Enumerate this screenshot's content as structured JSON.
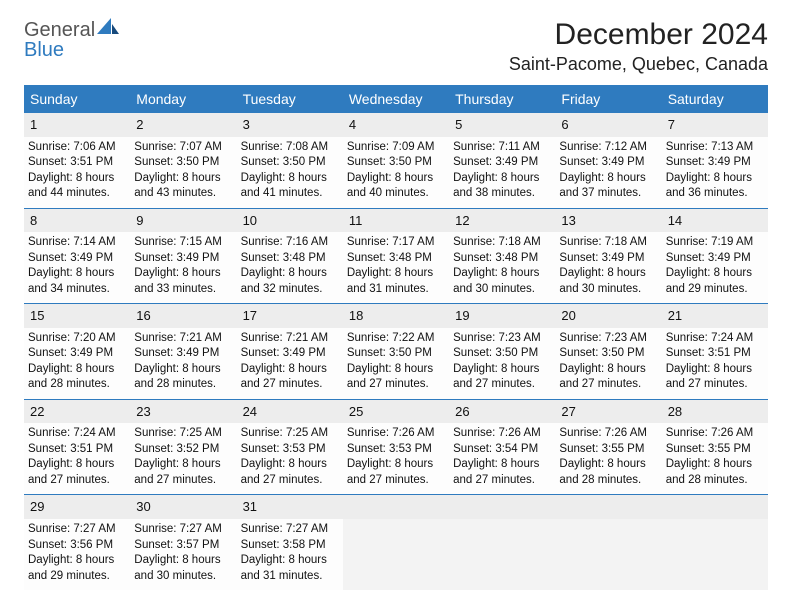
{
  "brand": {
    "word1": "General",
    "word2": "Blue",
    "primary_color": "#2f7bbf",
    "secondary_color": "#555555"
  },
  "title": "December 2024",
  "location": "Saint-Pacome, Quebec, Canada",
  "columns": [
    "Sunday",
    "Monday",
    "Tuesday",
    "Wednesday",
    "Thursday",
    "Friday",
    "Saturday"
  ],
  "style": {
    "header_bg": "#2f7bbf",
    "header_text": "#ffffff",
    "rule_color": "#2f7bbf",
    "daynum_bg": "#ededed",
    "cell_fontsize": 11.5,
    "title_fontsize": 30,
    "location_fontsize": 18
  },
  "days": [
    {
      "n": 1,
      "sunrise": "7:06 AM",
      "sunset": "3:51 PM",
      "daylight": "8 hours and 44 minutes."
    },
    {
      "n": 2,
      "sunrise": "7:07 AM",
      "sunset": "3:50 PM",
      "daylight": "8 hours and 43 minutes."
    },
    {
      "n": 3,
      "sunrise": "7:08 AM",
      "sunset": "3:50 PM",
      "daylight": "8 hours and 41 minutes."
    },
    {
      "n": 4,
      "sunrise": "7:09 AM",
      "sunset": "3:50 PM",
      "daylight": "8 hours and 40 minutes."
    },
    {
      "n": 5,
      "sunrise": "7:11 AM",
      "sunset": "3:49 PM",
      "daylight": "8 hours and 38 minutes."
    },
    {
      "n": 6,
      "sunrise": "7:12 AM",
      "sunset": "3:49 PM",
      "daylight": "8 hours and 37 minutes."
    },
    {
      "n": 7,
      "sunrise": "7:13 AM",
      "sunset": "3:49 PM",
      "daylight": "8 hours and 36 minutes."
    },
    {
      "n": 8,
      "sunrise": "7:14 AM",
      "sunset": "3:49 PM",
      "daylight": "8 hours and 34 minutes."
    },
    {
      "n": 9,
      "sunrise": "7:15 AM",
      "sunset": "3:49 PM",
      "daylight": "8 hours and 33 minutes."
    },
    {
      "n": 10,
      "sunrise": "7:16 AM",
      "sunset": "3:48 PM",
      "daylight": "8 hours and 32 minutes."
    },
    {
      "n": 11,
      "sunrise": "7:17 AM",
      "sunset": "3:48 PM",
      "daylight": "8 hours and 31 minutes."
    },
    {
      "n": 12,
      "sunrise": "7:18 AM",
      "sunset": "3:48 PM",
      "daylight": "8 hours and 30 minutes."
    },
    {
      "n": 13,
      "sunrise": "7:18 AM",
      "sunset": "3:49 PM",
      "daylight": "8 hours and 30 minutes."
    },
    {
      "n": 14,
      "sunrise": "7:19 AM",
      "sunset": "3:49 PM",
      "daylight": "8 hours and 29 minutes."
    },
    {
      "n": 15,
      "sunrise": "7:20 AM",
      "sunset": "3:49 PM",
      "daylight": "8 hours and 28 minutes."
    },
    {
      "n": 16,
      "sunrise": "7:21 AM",
      "sunset": "3:49 PM",
      "daylight": "8 hours and 28 minutes."
    },
    {
      "n": 17,
      "sunrise": "7:21 AM",
      "sunset": "3:49 PM",
      "daylight": "8 hours and 27 minutes."
    },
    {
      "n": 18,
      "sunrise": "7:22 AM",
      "sunset": "3:50 PM",
      "daylight": "8 hours and 27 minutes."
    },
    {
      "n": 19,
      "sunrise": "7:23 AM",
      "sunset": "3:50 PM",
      "daylight": "8 hours and 27 minutes."
    },
    {
      "n": 20,
      "sunrise": "7:23 AM",
      "sunset": "3:50 PM",
      "daylight": "8 hours and 27 minutes."
    },
    {
      "n": 21,
      "sunrise": "7:24 AM",
      "sunset": "3:51 PM",
      "daylight": "8 hours and 27 minutes."
    },
    {
      "n": 22,
      "sunrise": "7:24 AM",
      "sunset": "3:51 PM",
      "daylight": "8 hours and 27 minutes."
    },
    {
      "n": 23,
      "sunrise": "7:25 AM",
      "sunset": "3:52 PM",
      "daylight": "8 hours and 27 minutes."
    },
    {
      "n": 24,
      "sunrise": "7:25 AM",
      "sunset": "3:53 PM",
      "daylight": "8 hours and 27 minutes."
    },
    {
      "n": 25,
      "sunrise": "7:26 AM",
      "sunset": "3:53 PM",
      "daylight": "8 hours and 27 minutes."
    },
    {
      "n": 26,
      "sunrise": "7:26 AM",
      "sunset": "3:54 PM",
      "daylight": "8 hours and 27 minutes."
    },
    {
      "n": 27,
      "sunrise": "7:26 AM",
      "sunset": "3:55 PM",
      "daylight": "8 hours and 28 minutes."
    },
    {
      "n": 28,
      "sunrise": "7:26 AM",
      "sunset": "3:55 PM",
      "daylight": "8 hours and 28 minutes."
    },
    {
      "n": 29,
      "sunrise": "7:27 AM",
      "sunset": "3:56 PM",
      "daylight": "8 hours and 29 minutes."
    },
    {
      "n": 30,
      "sunrise": "7:27 AM",
      "sunset": "3:57 PM",
      "daylight": "8 hours and 30 minutes."
    },
    {
      "n": 31,
      "sunrise": "7:27 AM",
      "sunset": "3:58 PM",
      "daylight": "8 hours and 31 minutes."
    }
  ],
  "first_weekday_index": 0,
  "labels": {
    "sunrise": "Sunrise:",
    "sunset": "Sunset:",
    "daylight": "Daylight:"
  }
}
